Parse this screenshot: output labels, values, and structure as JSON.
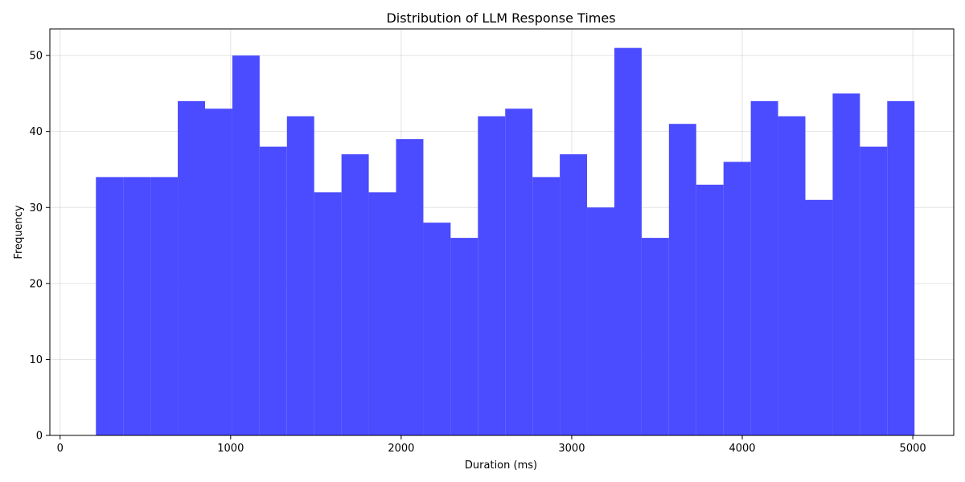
{
  "chart_data": {
    "type": "bar",
    "title": "Distribution of LLM Response Times",
    "xlabel": "Duration (ms)",
    "ylabel": "Frequency",
    "bar_color": "#4b4bff",
    "grid": true,
    "xlim": [
      -60,
      5240
    ],
    "ylim": [
      0,
      53.5
    ],
    "x_ticks": [
      0,
      1000,
      2000,
      3000,
      4000,
      5000
    ],
    "y_ticks": [
      0,
      10,
      20,
      30,
      40,
      50
    ],
    "bins": [
      {
        "start": 210,
        "end": 370,
        "count": 34
      },
      {
        "start": 370,
        "end": 530,
        "count": 34
      },
      {
        "start": 530,
        "end": 690,
        "count": 34
      },
      {
        "start": 690,
        "end": 850,
        "count": 44
      },
      {
        "start": 850,
        "end": 1010,
        "count": 43
      },
      {
        "start": 1010,
        "end": 1170,
        "count": 50
      },
      {
        "start": 1170,
        "end": 1330,
        "count": 38
      },
      {
        "start": 1330,
        "end": 1490,
        "count": 42
      },
      {
        "start": 1490,
        "end": 1650,
        "count": 32
      },
      {
        "start": 1650,
        "end": 1810,
        "count": 37
      },
      {
        "start": 1810,
        "end": 1970,
        "count": 32
      },
      {
        "start": 1970,
        "end": 2130,
        "count": 39
      },
      {
        "start": 2130,
        "end": 2290,
        "count": 28
      },
      {
        "start": 2290,
        "end": 2450,
        "count": 26
      },
      {
        "start": 2450,
        "end": 2610,
        "count": 42
      },
      {
        "start": 2610,
        "end": 2770,
        "count": 43
      },
      {
        "start": 2770,
        "end": 2930,
        "count": 34
      },
      {
        "start": 2930,
        "end": 3090,
        "count": 37
      },
      {
        "start": 3090,
        "end": 3250,
        "count": 30
      },
      {
        "start": 3250,
        "end": 3410,
        "count": 51
      },
      {
        "start": 3410,
        "end": 3570,
        "count": 26
      },
      {
        "start": 3570,
        "end": 3730,
        "count": 41
      },
      {
        "start": 3730,
        "end": 3890,
        "count": 33
      },
      {
        "start": 3890,
        "end": 4050,
        "count": 36
      },
      {
        "start": 4050,
        "end": 4210,
        "count": 44
      },
      {
        "start": 4210,
        "end": 4370,
        "count": 42
      },
      {
        "start": 4370,
        "end": 4530,
        "count": 31
      },
      {
        "start": 4530,
        "end": 4690,
        "count": 45
      },
      {
        "start": 4690,
        "end": 4850,
        "count": 38
      },
      {
        "start": 4850,
        "end": 5010,
        "count": 44
      }
    ]
  }
}
